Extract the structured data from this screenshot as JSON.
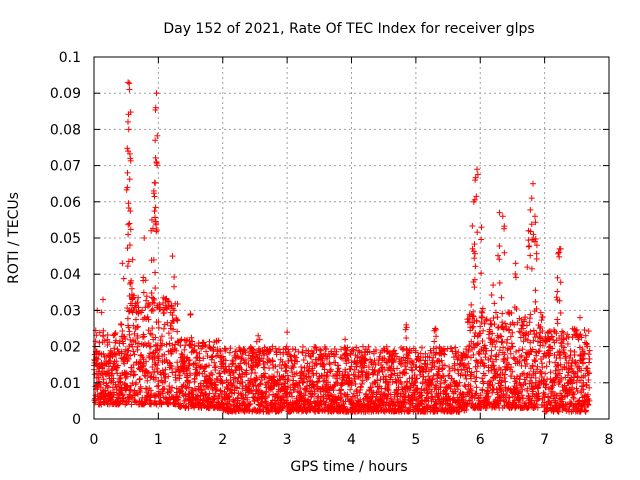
{
  "chart_data": {
    "type": "scatter",
    "title": "Day 152 of 2021, Rate Of TEC Index for receiver glps",
    "xlabel": "GPS time / hours",
    "ylabel": "ROTI / TECUs",
    "xlim": [
      0,
      8
    ],
    "ylim": [
      0,
      0.1
    ],
    "x_ticks": [
      0,
      1,
      2,
      3,
      4,
      5,
      6,
      7,
      8
    ],
    "y_ticks": [
      0,
      0.01,
      0.02,
      0.03,
      0.04,
      0.05,
      0.06,
      0.07,
      0.08,
      0.09,
      0.1
    ],
    "x_tick_labels": [
      "0",
      "1",
      "2",
      "3",
      "4",
      "5",
      "6",
      "7",
      "8"
    ],
    "y_tick_labels": [
      "0",
      "0.01",
      "0.02",
      "0.03",
      "0.04",
      "0.05",
      "0.06",
      "0.07",
      "0.08",
      "0.09",
      "0.1"
    ],
    "grid": true,
    "marker": "+",
    "color": "#ff0000",
    "x_data_range": [
      0,
      7.7
    ],
    "series": [
      {
        "name": "ROTI",
        "notable_points": [
          {
            "x": 0.53,
            "y": 0.093
          },
          {
            "x": 0.55,
            "y": 0.091
          },
          {
            "x": 0.54,
            "y": 0.08
          },
          {
            "x": 0.53,
            "y": 0.074
          },
          {
            "x": 0.52,
            "y": 0.068
          },
          {
            "x": 0.55,
            "y": 0.054
          },
          {
            "x": 0.97,
            "y": 0.09
          },
          {
            "x": 0.96,
            "y": 0.086
          },
          {
            "x": 0.95,
            "y": 0.077
          },
          {
            "x": 0.97,
            "y": 0.071
          },
          {
            "x": 0.93,
            "y": 0.063
          },
          {
            "x": 0.9,
            "y": 0.055
          },
          {
            "x": 0.44,
            "y": 0.043
          },
          {
            "x": 0.6,
            "y": 0.044
          },
          {
            "x": 0.78,
            "y": 0.05
          },
          {
            "x": 1.22,
            "y": 0.045
          },
          {
            "x": 0.14,
            "y": 0.033
          },
          {
            "x": 0.05,
            "y": 0.03
          },
          {
            "x": 5.95,
            "y": 0.069
          },
          {
            "x": 5.92,
            "y": 0.066
          },
          {
            "x": 5.9,
            "y": 0.06
          },
          {
            "x": 6.02,
            "y": 0.053
          },
          {
            "x": 5.88,
            "y": 0.047
          },
          {
            "x": 6.3,
            "y": 0.057
          },
          {
            "x": 6.35,
            "y": 0.056
          },
          {
            "x": 6.82,
            "y": 0.065
          },
          {
            "x": 6.8,
            "y": 0.061
          },
          {
            "x": 6.85,
            "y": 0.056
          },
          {
            "x": 6.75,
            "y": 0.052
          },
          {
            "x": 6.88,
            "y": 0.048
          },
          {
            "x": 7.25,
            "y": 0.047
          },
          {
            "x": 7.22,
            "y": 0.046
          },
          {
            "x": 7.2,
            "y": 0.039
          },
          {
            "x": 6.55,
            "y": 0.043
          },
          {
            "x": 6.2,
            "y": 0.037
          },
          {
            "x": 4.85,
            "y": 0.026
          },
          {
            "x": 5.3,
            "y": 0.025
          },
          {
            "x": 3.9,
            "y": 0.022
          },
          {
            "x": 3.0,
            "y": 0.024
          },
          {
            "x": 2.55,
            "y": 0.023
          },
          {
            "x": 1.5,
            "y": 0.029
          },
          {
            "x": 7.55,
            "y": 0.028
          }
        ],
        "baseline_band": {
          "0.0-0.5": [
            0.004,
            0.024
          ],
          "0.5-1.3": [
            0.004,
            0.035
          ],
          "1.3-2.0": [
            0.003,
            0.022
          ],
          "2.0-5.8": [
            0.002,
            0.02
          ],
          "5.8-7.0": [
            0.003,
            0.03
          ],
          "7.0-7.7": [
            0.002,
            0.025
          ]
        }
      }
    ]
  }
}
